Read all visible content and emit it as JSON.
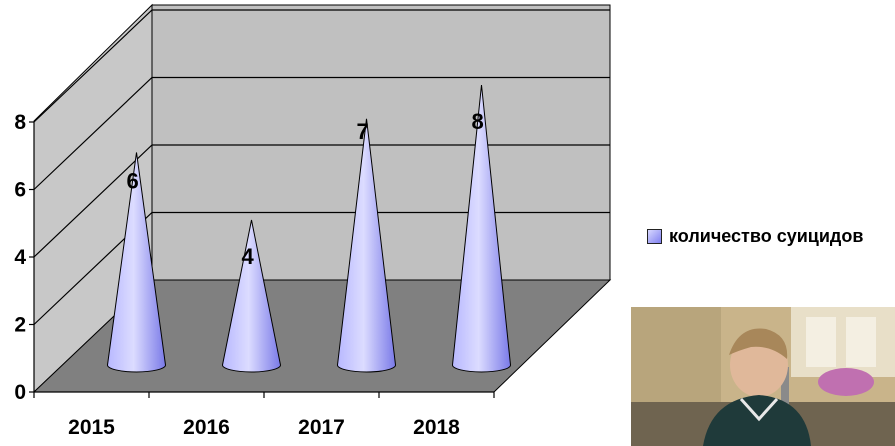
{
  "chart_data": {
    "type": "bar",
    "bar_shape": "cone",
    "style": "3d",
    "categories": [
      "2015",
      "2016",
      "2017",
      "2018"
    ],
    "series": [
      {
        "name": "количество суицидов",
        "values": [
          6,
          4,
          7,
          8
        ],
        "color": "#9999ff"
      }
    ],
    "data_labels": [
      "6",
      "4",
      "7",
      "8"
    ],
    "y_ticks": [
      "0",
      "2",
      "4",
      "6",
      "8"
    ],
    "ylim": [
      0,
      8
    ],
    "title": "",
    "xlabel": "",
    "ylabel": "",
    "grid": true,
    "legend_position": "right",
    "colors": {
      "wall": "#c0c0c0",
      "floor": "#808080",
      "cone": "#9999ff"
    }
  }
}
